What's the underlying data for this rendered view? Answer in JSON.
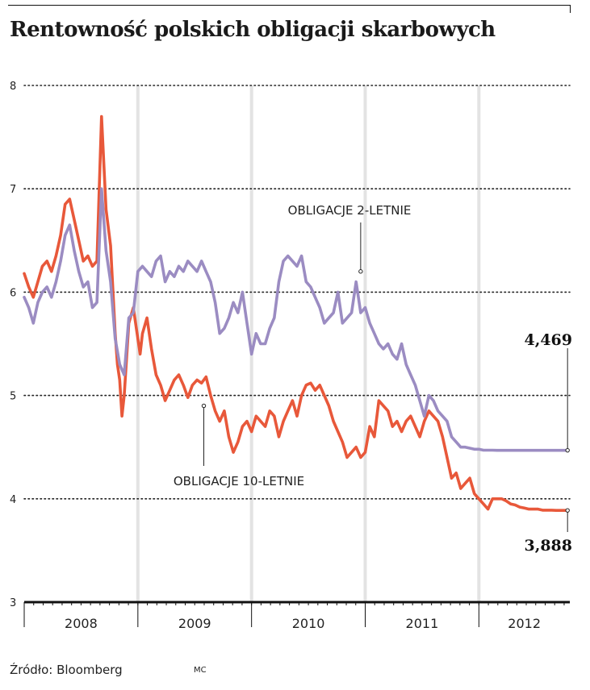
{
  "chart_data": {
    "type": "line",
    "title": "Rentowność polskich obligacji skarbowych",
    "xlabel": "",
    "ylabel": "",
    "ylim": [
      3,
      8
    ],
    "yticks": [
      "8",
      "7",
      "6",
      "5",
      "4",
      "3"
    ],
    "xlim": [
      2008.0,
      2012.8
    ],
    "year_labels": [
      "2008",
      "2009",
      "2010",
      "2011",
      "2012"
    ],
    "series": [
      {
        "name": "OBLIGACJE 10-LETNIE",
        "color": "#e8583a",
        "x": [
          2008.0,
          2008.04,
          2008.08,
          2008.12,
          2008.16,
          2008.2,
          2008.24,
          2008.28,
          2008.32,
          2008.36,
          2008.4,
          2008.44,
          2008.48,
          2008.52,
          2008.56,
          2008.6,
          2008.64,
          2008.68,
          2008.72,
          2008.76,
          2008.8,
          2008.82,
          2008.84,
          2008.86,
          2008.88,
          2008.92,
          2008.96,
          2009.0,
          2009.02,
          2009.04,
          2009.08,
          2009.12,
          2009.16,
          2009.2,
          2009.24,
          2009.28,
          2009.32,
          2009.36,
          2009.4,
          2009.44,
          2009.48,
          2009.52,
          2009.56,
          2009.6,
          2009.64,
          2009.68,
          2009.72,
          2009.76,
          2009.8,
          2009.84,
          2009.88,
          2009.92,
          2009.96,
          2010.0,
          2010.04,
          2010.08,
          2010.12,
          2010.16,
          2010.2,
          2010.24,
          2010.28,
          2010.32,
          2010.36,
          2010.4,
          2010.44,
          2010.48,
          2010.52,
          2010.56,
          2010.6,
          2010.64,
          2010.68,
          2010.72,
          2010.76,
          2010.8,
          2010.84,
          2010.88,
          2010.92,
          2010.96,
          2011.0,
          2011.04,
          2011.08,
          2011.12,
          2011.16,
          2011.2,
          2011.24,
          2011.28,
          2011.32,
          2011.36,
          2011.4,
          2011.44,
          2011.48,
          2011.52,
          2011.56,
          2011.6,
          2011.64,
          2011.68,
          2011.72,
          2011.76,
          2011.8,
          2011.84,
          2011.88,
          2011.92,
          2011.96,
          2012.0,
          2012.04,
          2012.08,
          2012.12,
          2012.16,
          2012.2,
          2012.24,
          2012.28,
          2012.32,
          2012.36,
          2012.4,
          2012.44,
          2012.48,
          2012.52,
          2012.56,
          2012.6,
          2012.64,
          2012.68,
          2012.72,
          2012.75,
          2012.78
        ],
        "values": [
          6.18,
          6.05,
          5.95,
          6.1,
          6.25,
          6.3,
          6.2,
          6.35,
          6.55,
          6.85,
          6.9,
          6.7,
          6.5,
          6.3,
          6.35,
          6.25,
          6.3,
          7.7,
          6.8,
          6.45,
          5.6,
          5.3,
          5.15,
          4.8,
          5.0,
          5.7,
          5.85,
          5.55,
          5.4,
          5.6,
          5.75,
          5.45,
          5.2,
          5.1,
          4.95,
          5.05,
          5.15,
          5.2,
          5.1,
          4.98,
          5.1,
          5.15,
          5.12,
          5.18,
          5.0,
          4.85,
          4.75,
          4.85,
          4.6,
          4.45,
          4.55,
          4.7,
          4.75,
          4.65,
          4.8,
          4.75,
          4.7,
          4.85,
          4.8,
          4.6,
          4.75,
          4.85,
          4.95,
          4.8,
          5.0,
          5.1,
          5.12,
          5.05,
          5.1,
          5.0,
          4.9,
          4.75,
          4.65,
          4.55,
          4.4,
          4.45,
          4.5,
          4.4,
          4.45,
          4.7,
          4.6,
          4.95,
          4.9,
          4.85,
          4.7,
          4.75,
          4.65,
          4.75,
          4.8,
          4.7,
          4.6,
          4.75,
          4.85,
          4.8,
          4.75,
          4.6,
          4.4,
          4.2,
          4.25,
          4.1,
          4.15,
          4.2,
          4.05,
          4.0,
          3.95,
          3.9,
          4.0,
          4.0,
          4.0,
          3.98,
          3.95,
          3.94,
          3.92,
          3.91,
          3.9,
          3.9,
          3.9,
          3.89,
          3.89,
          3.89,
          3.888,
          3.888,
          3.888,
          3.888
        ],
        "end_label": "3,888"
      },
      {
        "name": "OBLIGACJE 2-LETNIE",
        "color": "#9b8cc2",
        "x": [
          2008.0,
          2008.04,
          2008.08,
          2008.12,
          2008.16,
          2008.2,
          2008.24,
          2008.28,
          2008.32,
          2008.36,
          2008.4,
          2008.44,
          2008.48,
          2008.52,
          2008.56,
          2008.6,
          2008.64,
          2008.68,
          2008.72,
          2008.76,
          2008.8,
          2008.84,
          2008.88,
          2008.92,
          2008.96,
          2009.0,
          2009.04,
          2009.08,
          2009.12,
          2009.16,
          2009.2,
          2009.24,
          2009.28,
          2009.32,
          2009.36,
          2009.4,
          2009.44,
          2009.48,
          2009.52,
          2009.56,
          2009.6,
          2009.64,
          2009.68,
          2009.72,
          2009.76,
          2009.8,
          2009.84,
          2009.88,
          2009.92,
          2009.96,
          2010.0,
          2010.04,
          2010.08,
          2010.12,
          2010.16,
          2010.2,
          2010.24,
          2010.28,
          2010.32,
          2010.36,
          2010.4,
          2010.44,
          2010.48,
          2010.52,
          2010.56,
          2010.6,
          2010.64,
          2010.68,
          2010.72,
          2010.76,
          2010.8,
          2010.84,
          2010.88,
          2010.92,
          2010.96,
          2011.0,
          2011.04,
          2011.08,
          2011.12,
          2011.16,
          2011.2,
          2011.24,
          2011.28,
          2011.32,
          2011.36,
          2011.4,
          2011.44,
          2011.48,
          2011.52,
          2011.56,
          2011.6,
          2011.64,
          2011.68,
          2011.72,
          2011.76,
          2011.8,
          2011.84,
          2011.88,
          2011.92,
          2011.96,
          2012.0,
          2012.04,
          2012.08,
          2012.12,
          2012.16,
          2012.2,
          2012.24,
          2012.28,
          2012.32,
          2012.36,
          2012.4,
          2012.44,
          2012.48,
          2012.52,
          2012.56,
          2012.6,
          2012.64,
          2012.68,
          2012.72,
          2012.76,
          2012.78
        ],
        "values": [
          5.95,
          5.85,
          5.7,
          5.9,
          6.0,
          6.05,
          5.95,
          6.1,
          6.3,
          6.55,
          6.65,
          6.4,
          6.2,
          6.05,
          6.1,
          5.85,
          5.9,
          7.0,
          6.4,
          6.1,
          5.55,
          5.3,
          5.2,
          5.75,
          5.8,
          6.2,
          6.25,
          6.2,
          6.15,
          6.3,
          6.35,
          6.1,
          6.2,
          6.15,
          6.25,
          6.2,
          6.3,
          6.25,
          6.2,
          6.3,
          6.2,
          6.1,
          5.9,
          5.6,
          5.65,
          5.75,
          5.9,
          5.8,
          6.0,
          5.7,
          5.4,
          5.6,
          5.5,
          5.5,
          5.65,
          5.75,
          6.1,
          6.3,
          6.35,
          6.3,
          6.25,
          6.35,
          6.1,
          6.05,
          5.95,
          5.85,
          5.7,
          5.75,
          5.8,
          6.0,
          5.7,
          5.75,
          5.8,
          6.1,
          5.8,
          5.85,
          5.7,
          5.6,
          5.5,
          5.45,
          5.5,
          5.4,
          5.35,
          5.5,
          5.3,
          5.2,
          5.1,
          4.95,
          4.8,
          5.0,
          4.95,
          4.85,
          4.8,
          4.75,
          4.6,
          4.55,
          4.5,
          4.5,
          4.49,
          4.48,
          4.48,
          4.47,
          4.47,
          4.47,
          4.469,
          4.469,
          4.469,
          4.469,
          4.469,
          4.469,
          4.469,
          4.469,
          4.469,
          4.469,
          4.469,
          4.469,
          4.469,
          4.469,
          4.469,
          4.469,
          4.469
        ],
        "end_label": "4,469"
      }
    ],
    "source": "Źródło: Bloomberg",
    "credit": "MC"
  }
}
